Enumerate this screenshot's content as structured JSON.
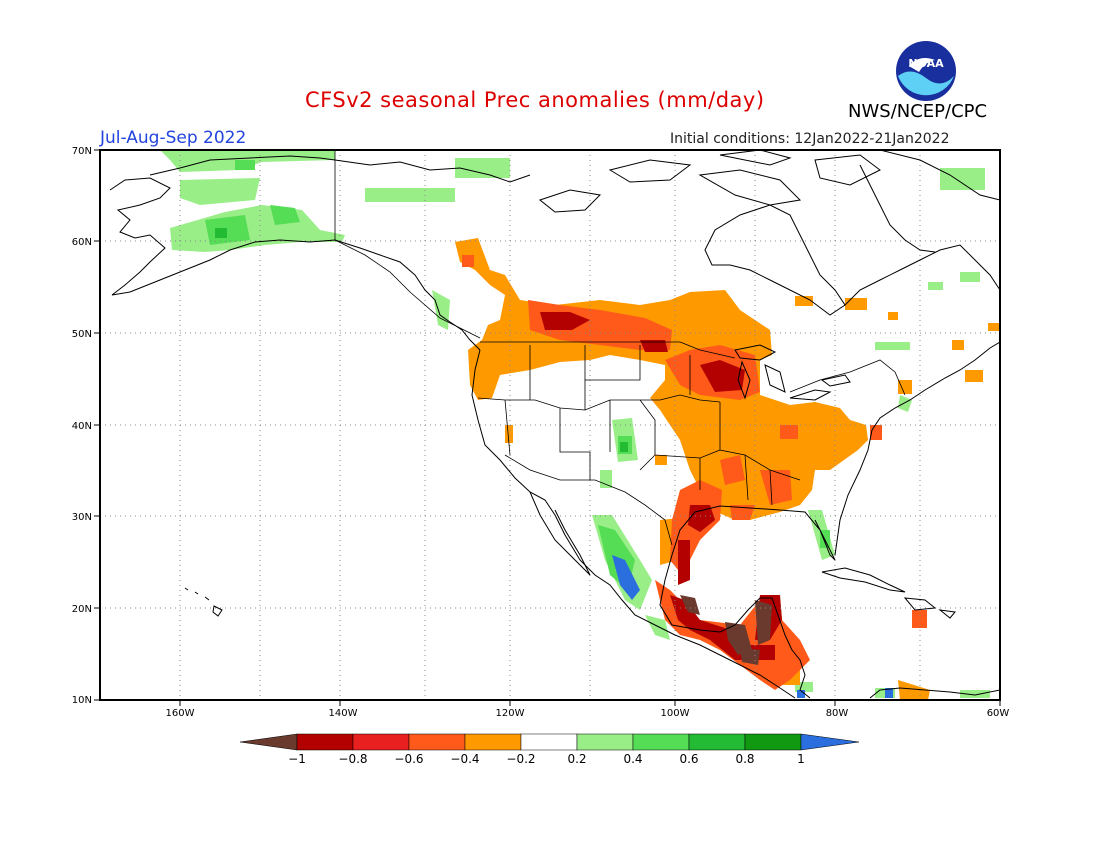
{
  "header": {
    "title": "CFSv2 seasonal Prec anomalies (mm/day)",
    "season": "Jul-Aug-Sep 2022",
    "initial_conditions": "Initial conditions: 12Jan2022-21Jan2022",
    "agency": "NWS/NCEP/CPC",
    "logo_text": "NOAA"
  },
  "map": {
    "lon_labels": [
      "160W",
      "140W",
      "120W",
      "100W",
      "80W",
      "60W"
    ],
    "lat_labels": [
      "70N",
      "60N",
      "50N",
      "40N",
      "30N",
      "20N",
      "10N"
    ]
  },
  "colorbar": {
    "labels": [
      "-1",
      "-0.8",
      "-0.6",
      "-0.4",
      "-0.2",
      "0.2",
      "0.4",
      "0.6",
      "0.8",
      "1"
    ],
    "colors": {
      "below_min": "#6b3a2e",
      "bins": [
        "#b30000",
        "#e82020",
        "#ff5a1a",
        "#ff9900",
        "#ffffff",
        "#99ee88",
        "#55dd55",
        "#22bb33",
        "#119911"
      ],
      "above_max": "#2a6fdd"
    }
  }
}
